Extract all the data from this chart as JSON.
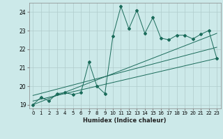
{
  "title": "",
  "xlabel": "Humidex (Indice chaleur)",
  "ylabel": "",
  "background_color": "#cce9e9",
  "grid_color": "#b0cccc",
  "line_color": "#1a6b5a",
  "xlim": [
    -0.5,
    23.5
  ],
  "ylim": [
    18.8,
    24.5
  ],
  "xticks": [
    0,
    1,
    2,
    3,
    4,
    5,
    6,
    7,
    8,
    9,
    10,
    11,
    12,
    13,
    14,
    15,
    16,
    17,
    18,
    19,
    20,
    21,
    22,
    23
  ],
  "yticks": [
    19,
    20,
    21,
    22,
    23,
    24
  ],
  "series_main": {
    "x": [
      0,
      1,
      2,
      3,
      4,
      5,
      6,
      7,
      8,
      9,
      10,
      11,
      12,
      13,
      14,
      15,
      16,
      17,
      18,
      19,
      20,
      21,
      22,
      23
    ],
    "y": [
      19.0,
      19.4,
      19.2,
      19.6,
      19.65,
      19.55,
      19.65,
      21.3,
      20.0,
      19.6,
      22.7,
      24.3,
      23.1,
      24.1,
      22.85,
      23.7,
      22.6,
      22.5,
      22.75,
      22.75,
      22.55,
      22.8,
      23.0,
      21.5
    ]
  },
  "series_linear1": {
    "x": [
      0,
      23
    ],
    "y": [
      19.0,
      22.85
    ]
  },
  "series_linear2": {
    "x": [
      0,
      23
    ],
    "y": [
      19.2,
      21.5
    ]
  },
  "series_linear3": {
    "x": [
      0,
      23
    ],
    "y": [
      19.5,
      22.1
    ]
  }
}
